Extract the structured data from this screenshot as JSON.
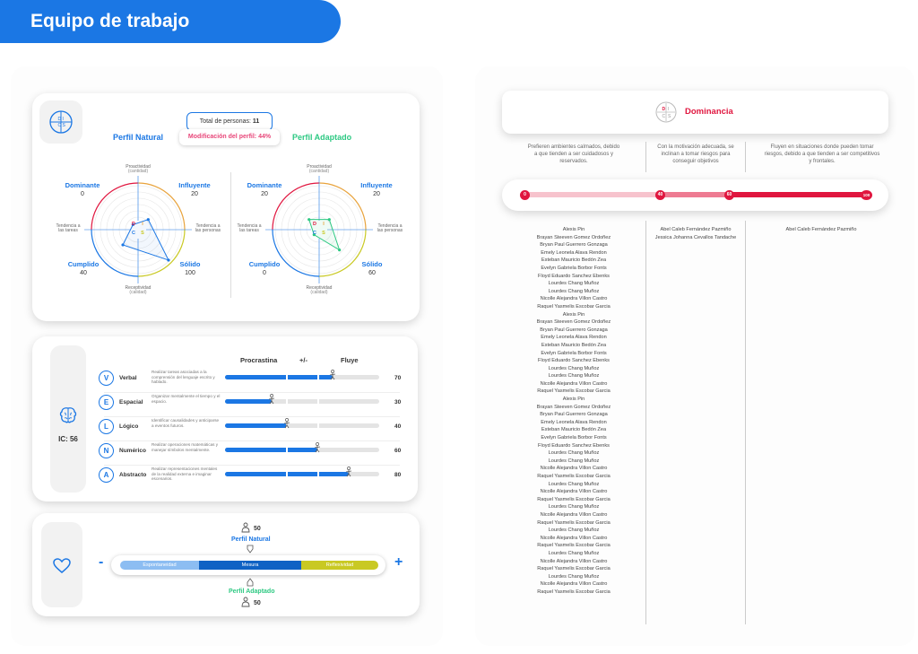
{
  "header": {
    "title": "Equipo de trabajo"
  },
  "profile": {
    "total_label": "Total de personas:",
    "total_value": "11",
    "modification_label": "Modificación del perfil: 44%",
    "natural_title": "Perfil Natural",
    "adapted_title": "Perfil Adaptado",
    "axis_top": "Proactividad",
    "axis_top_sub": "(cantidad)",
    "axis_bottom": "Receptividad",
    "axis_bottom_sub": "(calidad)",
    "axis_left_1": "Tendencia a",
    "axis_left_2": "las tareas",
    "axis_right_1": "Tendencia a",
    "axis_right_2": "las personas",
    "natural": {
      "dominante": "0",
      "influyente": "20",
      "cumplido": "40",
      "solido": "100"
    },
    "adapted": {
      "dominante": "20",
      "influyente": "20",
      "cumplido": "0",
      "solido": "60"
    },
    "labels": {
      "dominante": "Dominante",
      "influyente": "Influyente",
      "cumplido": "Cumplido",
      "solido": "Sólido"
    },
    "disc": [
      "D",
      "I",
      "C",
      "S"
    ]
  },
  "ic": {
    "label": "IC: 56",
    "col_left": "Procrastina",
    "col_mid": "+/-",
    "col_right": "Fluye",
    "rows": [
      {
        "letter": "V",
        "name": "Verbal",
        "desc": "Realizar tareas asociadas a la comprensión del lenguaje escrito y hablado.",
        "value": "70",
        "level": 70
      },
      {
        "letter": "E",
        "name": "Espacial",
        "desc": "Organizar mentalmente el tiempo y el espacio.",
        "value": "30",
        "level": 30
      },
      {
        "letter": "L",
        "name": "Lógico",
        "desc": "Identificar causalidades y anticiparse a eventos futuros.",
        "value": "40",
        "level": 40
      },
      {
        "letter": "N",
        "name": "Numérico",
        "desc": "Realizar operaciones matemáticas y manejar símbolos mentalmente.",
        "value": "60",
        "level": 60
      },
      {
        "letter": "A",
        "name": "Abstracto",
        "desc": "Realizar representaciones mentales de la realidad externa e imaginar escenarios.",
        "value": "80",
        "level": 80
      }
    ]
  },
  "emotion": {
    "natural_value": "50",
    "natural_label": "Perfil Natural",
    "adapted_value": "50",
    "adapted_label": "Perfil Adaptado",
    "minus": "-",
    "plus": "+",
    "seg_left": "Espontaneidad",
    "seg_mid": "Mesura",
    "seg_right": "Reflexividad"
  },
  "dominance": {
    "title": "Dominancia",
    "desc_left": "Prefieren ambientes calmados, debido a que tienden a ser cuidadosos y reservados.",
    "desc_mid": "Con la motivación adecuada, se inclinan a tomar riesgos para conseguir objetivos",
    "desc_right": "Fluyen en situaciones donde pueden tomar riesgos, debido a que tienden a ser competitivos y frontales.",
    "scale": [
      "0",
      "40",
      "60",
      "100"
    ],
    "col_left": [
      "Alexis Pin",
      "Brayan Steeven Gomez Ordoñez",
      "Bryan Paul Guerrero Gonzaga",
      "Emely Leonela Alava Rendon",
      "Esteban Mauricio Bedón Zea",
      "Evelyn Gabriela Borbor Fonts",
      "Floyd Eduardo Sanchez Ebenks",
      "Lourdes Chang Muñoz",
      "Lourdes Chang Muñoz",
      "Nicolle Alejandra Villon Castro",
      "Raquel Yasmelis Escobar Garcia",
      "Alexis Pin",
      "Brayan Steeven Gomez Ordoñez",
      "Bryan Paul Guerrero Gonzaga",
      "Emely Leonela Alava Rendon",
      "Esteban Mauricio Bedón Zea",
      "Evelyn Gabriela Borbor Fonts",
      "Floyd Eduardo Sanchez Ebenks",
      "Lourdes Chang Muñoz",
      "Lourdes Chang Muñoz",
      "Nicolle Alejandra Villon Castro",
      "Raquel Yasmelis Escobar Garcia",
      "Alexis Pin",
      "Brayan Steeven Gomez Ordoñez",
      "Bryan Paul Guerrero Gonzaga",
      "Emely Leonela Alava Rendon",
      "Esteban Mauricio Bedón Zea",
      "Evelyn Gabriela Borbor Fonts",
      "Floyd Eduardo Sanchez Ebenks",
      "Lourdes Chang Muñoz",
      "Lourdes Chang Muñoz",
      "Nicolle Alejandra Villon Castro",
      "Raquel Yasmelis Escobar Garcia",
      "Lourdes Chang Muñoz",
      "Nicolle Alejandra Villon Castro",
      "Raquel Yasmelis Escobar Garcia",
      "Lourdes Chang Muñoz",
      "Nicolle Alejandra Villon Castro",
      "Raquel Yasmelis Escobar Garcia",
      "Lourdes Chang Muñoz",
      "Nicolle Alejandra Villon Castro",
      "Raquel Yasmelis Escobar Garcia",
      "Lourdes Chang Muñoz",
      "Nicolle Alejandra Villon Castro",
      "Raquel Yasmelis Escobar Garcia",
      "Lourdes Chang Muñoz",
      "Nicolle Alejandra Villon Castro",
      "Raquel Yasmelis Escobar Garcia"
    ],
    "col_mid": [
      "Abel Caleb Fernández Pazmiño",
      "Jessica Johanna Cevallos Tandache"
    ],
    "col_right": [
      "Abel Caleb Fernández Pazmiño"
    ]
  },
  "colors": {
    "blue": "#1b77e4",
    "green": "#2ec983",
    "red": "#e0163f",
    "pink": "#e8477a",
    "yellow": "#c9c923"
  }
}
